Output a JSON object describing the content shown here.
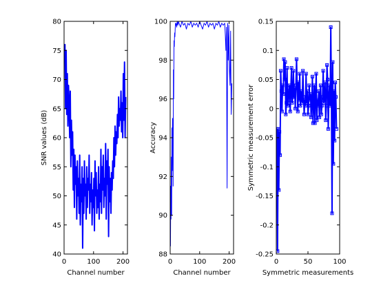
{
  "chart_data": [
    {
      "type": "line",
      "title": "",
      "xlabel": "Channel number",
      "ylabel": "SNR values (dB)",
      "xlim": [
        0,
        215
      ],
      "ylim": [
        40,
        80
      ],
      "xticks": [
        0,
        100,
        200
      ],
      "yticks": [
        40,
        45,
        50,
        55,
        60,
        65,
        70,
        75,
        80
      ],
      "color": "#0000ff",
      "linewidth": 2,
      "marker": "none",
      "series": [
        {
          "x": [
            1,
            3,
            5,
            7,
            9,
            11,
            13,
            15,
            17,
            19,
            21,
            23,
            25,
            27,
            29,
            31,
            33,
            35,
            37,
            39,
            41,
            43,
            45,
            47,
            49,
            51,
            53,
            55,
            57,
            59,
            61,
            63,
            65,
            67,
            69,
            71,
            73,
            75,
            77,
            79,
            81,
            83,
            85,
            87,
            89,
            91,
            93,
            95,
            97,
            99,
            101,
            103,
            105,
            107,
            109,
            111,
            113,
            115,
            117,
            119,
            121,
            123,
            125,
            127,
            129,
            131,
            133,
            135,
            137,
            139,
            141,
            143,
            145,
            147,
            149,
            151,
            153,
            155,
            157,
            159,
            161,
            163,
            165,
            167,
            169,
            171,
            173,
            175,
            177,
            179,
            181,
            183,
            185,
            187,
            189,
            191,
            193,
            195,
            197,
            199,
            201,
            203,
            205,
            207,
            209
          ],
          "y": [
            73,
            76,
            65,
            75,
            64,
            71,
            62,
            69,
            66,
            60,
            68,
            55,
            63,
            57,
            61,
            51,
            58,
            48,
            57,
            52,
            55,
            46,
            56,
            50,
            53,
            47,
            57,
            45,
            52,
            49,
            55,
            41,
            53,
            47,
            56,
            50,
            52,
            46,
            55,
            48,
            53,
            51,
            57,
            47,
            52,
            49,
            54,
            45,
            51,
            48,
            53,
            44,
            56,
            50,
            54,
            47,
            51,
            48,
            55,
            46,
            52,
            49,
            58,
            47,
            55,
            51,
            57,
            48,
            53,
            50,
            59,
            46,
            56,
            52,
            58,
            43,
            55,
            49,
            53,
            47,
            54,
            51,
            56,
            53,
            60,
            55,
            62,
            57,
            61,
            59,
            64,
            60,
            67,
            62,
            65,
            63,
            68,
            61,
            66,
            60,
            71,
            63,
            73,
            60,
            67
          ]
        }
      ]
    },
    {
      "type": "line",
      "title": "",
      "xlabel": "Channel number",
      "ylabel": "Accuracy",
      "xlim": [
        0,
        215
      ],
      "ylim": [
        88,
        100
      ],
      "xticks": [
        0,
        100,
        200
      ],
      "yticks": [
        88,
        90,
        92,
        94,
        96,
        98,
        100
      ],
      "color": "#0000ff",
      "linewidth": 1,
      "marker": "none",
      "series": [
        {
          "x": [
            1,
            2,
            3,
            4,
            5,
            6,
            7,
            8,
            9,
            10,
            11,
            12,
            13,
            14,
            15,
            16,
            17,
            18,
            19,
            20,
            22,
            24,
            26,
            28,
            30,
            35,
            40,
            45,
            50,
            55,
            60,
            65,
            70,
            75,
            80,
            85,
            90,
            95,
            100,
            105,
            110,
            115,
            120,
            125,
            130,
            135,
            140,
            145,
            150,
            155,
            160,
            165,
            170,
            175,
            180,
            185,
            187,
            189,
            191,
            193,
            195,
            197,
            199,
            201,
            203,
            205,
            207,
            209
          ],
          "y": [
            88.4,
            91.5,
            89.8,
            93,
            90,
            94.5,
            92.3,
            95,
            94.7,
            91.5,
            97.5,
            96,
            99,
            98.7,
            99.4,
            99.2,
            99.6,
            99.9,
            99.8,
            99.9,
            99.7,
            100,
            99.8,
            100,
            99.9,
            99.7,
            100,
            99.8,
            99.9,
            99.6,
            99.9,
            99.8,
            100,
            99.7,
            99.9,
            99.8,
            99.9,
            99.7,
            100,
            99.8,
            99.6,
            99.9,
            99.8,
            100,
            99.7,
            99.9,
            99.8,
            99.9,
            99.6,
            99.9,
            99.8,
            100,
            99.7,
            99.9,
            99.8,
            99.9,
            99.3,
            98.5,
            99.7,
            91.4,
            99.9,
            98,
            99.8,
            97.5,
            96.7,
            99.5,
            95.2,
            96.8
          ]
        }
      ]
    },
    {
      "type": "line",
      "title": "",
      "xlabel": "Symmetric measurements",
      "ylabel": "Symmetric measurement error",
      "xlim": [
        0,
        100
      ],
      "ylim": [
        -0.25,
        0.15
      ],
      "xticks": [
        0,
        50,
        100
      ],
      "yticks": [
        -0.25,
        -0.2,
        -0.15,
        -0.1,
        -0.05,
        0,
        0.05,
        0.1,
        0.15
      ],
      "color": "#0000ff",
      "linewidth": 2,
      "marker": "square",
      "series": [
        {
          "x": [
            1,
            2,
            3,
            4,
            5,
            6,
            7,
            8,
            9,
            10,
            11,
            12,
            13,
            14,
            15,
            16,
            17,
            18,
            19,
            20,
            21,
            22,
            23,
            24,
            25,
            26,
            27,
            28,
            29,
            30,
            31,
            32,
            33,
            34,
            35,
            36,
            37,
            38,
            39,
            40,
            41,
            42,
            43,
            44,
            45,
            46,
            47,
            48,
            49,
            50,
            51,
            52,
            53,
            54,
            55,
            56,
            57,
            58,
            59,
            60,
            61,
            62,
            63,
            64,
            65,
            66,
            67,
            68,
            69,
            70,
            71,
            72,
            73,
            74,
            75,
            76,
            77,
            78,
            79,
            80,
            81,
            82,
            83,
            84,
            85,
            86,
            87,
            88,
            89,
            90,
            91,
            92,
            93,
            94,
            95
          ],
          "y": [
            -0.035,
            -0.245,
            -0.035,
            -0.14,
            -0.04,
            -0.08,
            0.065,
            0.03,
            -0.005,
            0.04,
            0.025,
            0.085,
            0.05,
            0.08,
            -0.01,
            0.01,
            0.07,
            0.005,
            0.01,
            0.035,
            0.04,
            -0.005,
            0.035,
            0.07,
            0.01,
            0.02,
            0.065,
            0.02,
            0.035,
            0,
            0.04,
            0.085,
            0.035,
            -0.005,
            0.045,
            0.015,
            0.06,
            0.005,
            0.03,
            0.015,
            0.01,
            0.065,
            0.02,
            -0.01,
            0.015,
            0.005,
            0.06,
            0.01,
            0.03,
            -0.01,
            0.005,
            0.04,
            0.015,
            0.025,
            -0.015,
            0.01,
            0.055,
            -0.025,
            0.01,
            0.04,
            -0.025,
            0.02,
            0.06,
            -0.02,
            0.015,
            0.005,
            0.03,
            -0.015,
            0.02,
            0.04,
            -0.01,
            0.005,
            0.02,
            0.065,
            0.01,
            0.02,
            0.045,
            -0.02,
            0.005,
            0.075,
            0.05,
            -0.035,
            0.02,
            0.04,
            0.005,
            0.14,
            0.02,
            -0.18,
            0.08,
            -0.095,
            0.03,
            -0.055,
            0.045,
            0.02,
            -0.035
          ]
        }
      ]
    }
  ]
}
